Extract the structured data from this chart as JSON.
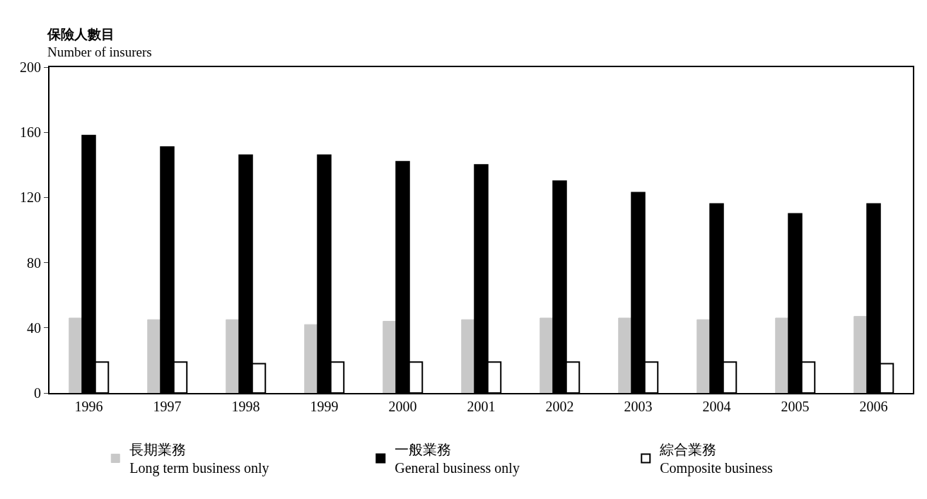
{
  "chart_data": {
    "type": "bar",
    "ylabel": "保險人數目\nNumber of insurers",
    "categories": [
      "1996",
      "1997",
      "1998",
      "1999",
      "2000",
      "2001",
      "2002",
      "2003",
      "2004",
      "2005",
      "2006"
    ],
    "series": [
      {
        "name": "長期業務\nLong term business only",
        "color": "#c8c8c8",
        "values": [
          46,
          45,
          45,
          42,
          44,
          45,
          46,
          46,
          45,
          46,
          47
        ]
      },
      {
        "name": "一般業務\nGeneral business only",
        "color": "#000000",
        "values": [
          158,
          151,
          146,
          146,
          142,
          140,
          130,
          123,
          116,
          110,
          116
        ]
      },
      {
        "name": "綜合業務\nComposite business",
        "color": "#ffffff",
        "values": [
          19,
          19,
          18,
          19,
          19,
          19,
          19,
          19,
          19,
          19,
          18
        ]
      }
    ],
    "ylim": [
      0,
      200
    ],
    "yticks": [
      0,
      40,
      80,
      120,
      160,
      200
    ],
    "legend": "bottom"
  }
}
